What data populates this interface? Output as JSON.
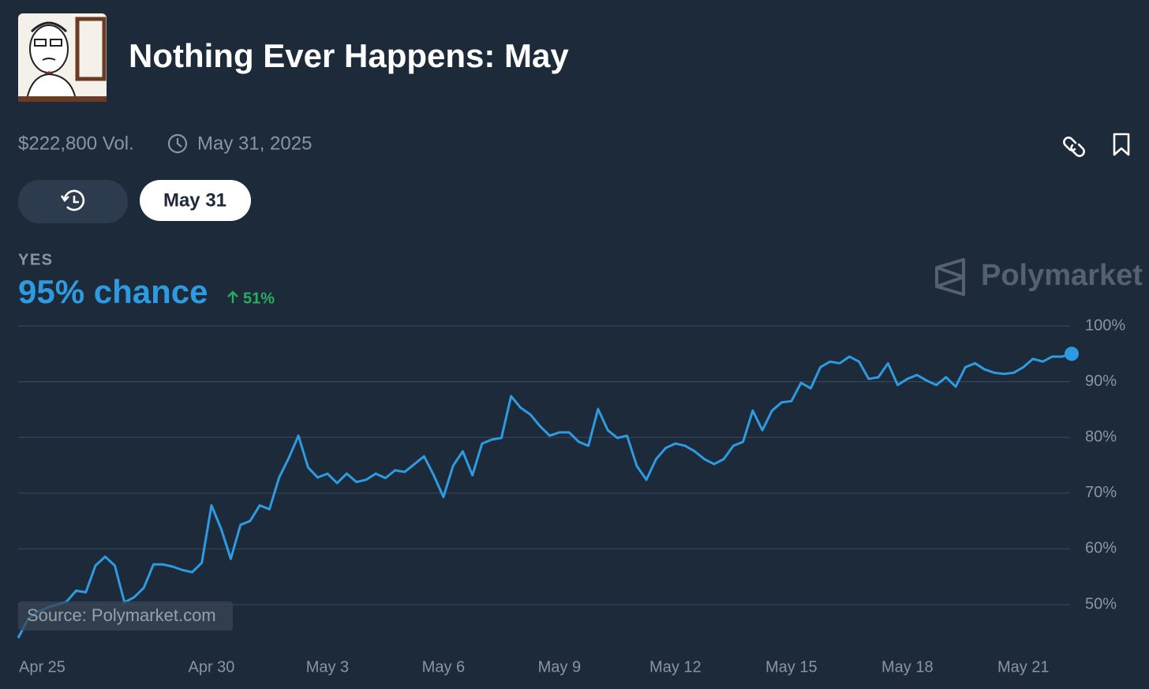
{
  "header": {
    "title": "Nothing Ever Happens: May",
    "volume": "$222,800 Vol.",
    "end_date": "May 31, 2025"
  },
  "tabs": {
    "active": "May 31"
  },
  "outcome": {
    "label": "YES",
    "chance": "95% chance",
    "change": "51%"
  },
  "watermark": "Polymarket",
  "source": "Source: Polymarket.com",
  "chart_data": {
    "type": "line",
    "color": "#2e9be0",
    "grid": true,
    "categories": [
      "Apr 25",
      null,
      null,
      null,
      null,
      null,
      null,
      null,
      null,
      null,
      null,
      null,
      null,
      null,
      null,
      null,
      null,
      null,
      null,
      null,
      "Apr 30",
      null,
      null,
      null,
      null,
      null,
      null,
      null,
      null,
      null,
      null,
      null,
      "May 3",
      null,
      null,
      null,
      null,
      null,
      null,
      null,
      null,
      null,
      null,
      null,
      "May 6",
      null,
      null,
      null,
      null,
      null,
      null,
      null,
      null,
      null,
      null,
      null,
      "May 9",
      null,
      null,
      null,
      null,
      null,
      null,
      null,
      null,
      null,
      null,
      null,
      "May 12",
      null,
      null,
      null,
      null,
      null,
      null,
      null,
      null,
      null,
      null,
      null,
      "May 15",
      null,
      null,
      null,
      null,
      null,
      null,
      null,
      null,
      null,
      null,
      null,
      "May 18",
      null,
      null,
      null,
      null,
      null,
      null,
      null,
      null,
      null,
      null,
      null,
      "May 21",
      null,
      null,
      null,
      null,
      null
    ],
    "values": [
      44,
      47.3,
      48.7,
      49.4,
      50,
      50.5,
      52.5,
      52.2,
      57,
      58.6,
      57,
      50.4,
      51.3,
      53,
      57.2,
      57.2,
      56.8,
      56.2,
      55.8,
      57.5,
      67.8,
      63.6,
      58.2,
      64.3,
      65,
      67.8,
      67.1,
      72.8,
      76.3,
      80.3,
      74.6,
      72.8,
      73.5,
      71.8,
      73.5,
      72,
      72.4,
      73.5,
      72.7,
      74.1,
      73.8,
      75.2,
      76.6,
      73.2,
      69.3,
      74.9,
      77.5,
      73.2,
      78.9,
      79.6,
      79.9,
      87.4,
      85.3,
      84.1,
      82,
      80.3,
      80.9,
      80.9,
      79.2,
      78.5,
      85.1,
      81.3,
      79.9,
      80.3,
      74.9,
      72.4,
      76.1,
      78.1,
      78.9,
      78.5,
      77.5,
      76.1,
      75.2,
      76.1,
      78.5,
      79.2,
      84.8,
      81.3,
      84.8,
      86.3,
      86.5,
      89.8,
      88.8,
      92.6,
      93.6,
      93.3,
      94.5,
      93.6,
      90.5,
      90.8,
      93.3,
      89.4,
      90.5,
      91.2,
      90.2,
      89.4,
      90.8,
      89.1,
      92.6,
      93.3,
      92.2,
      91.6,
      91.4,
      91.6,
      92.6,
      94.1,
      93.6,
      94.5,
      94.5,
      95
    ],
    "ylim": [
      42,
      100
    ],
    "yticks": [
      {
        "value": 50,
        "label": "50%"
      },
      {
        "value": 60,
        "label": "60%"
      },
      {
        "value": 70,
        "label": "70%"
      },
      {
        "value": 80,
        "label": "80%"
      },
      {
        "value": 90,
        "label": "90%"
      },
      {
        "value": 100,
        "label": "100%"
      }
    ]
  }
}
